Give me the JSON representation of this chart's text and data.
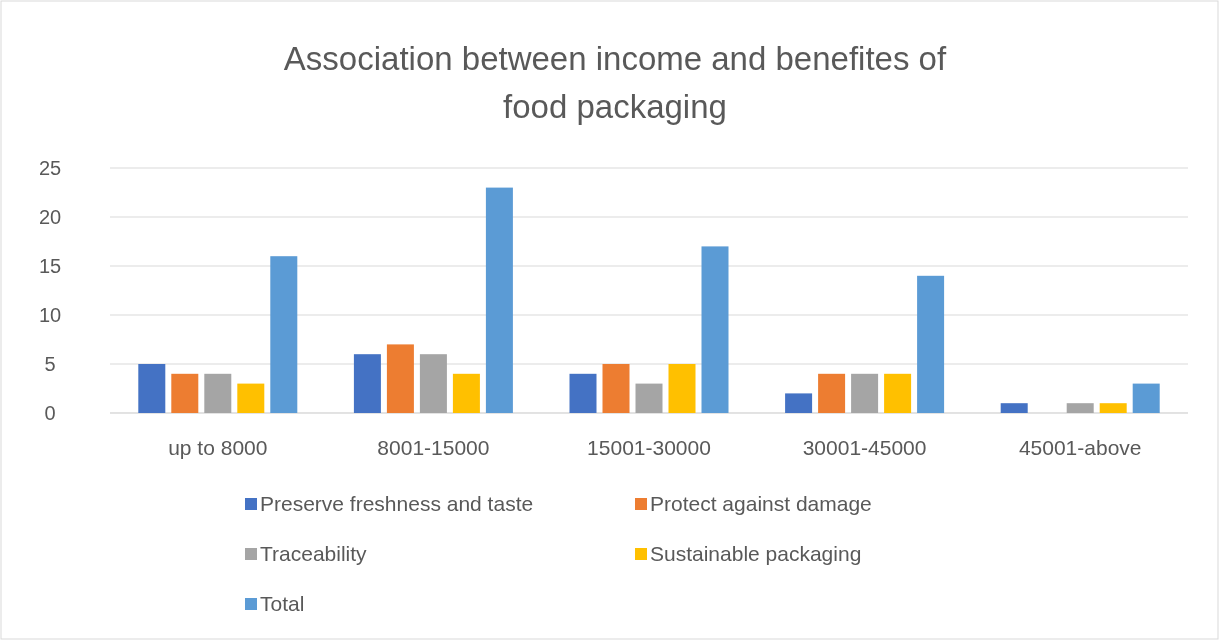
{
  "chart_data": {
    "type": "bar",
    "title": "Association between income and benefites of food packaging",
    "categories": [
      "up to 8000",
      "8001-15000",
      "15001-30000",
      "30001-45000",
      "45001-above"
    ],
    "series": [
      {
        "name": "Preserve freshness and taste",
        "color": "#4472c4",
        "values": [
          5,
          6,
          4,
          2,
          1
        ]
      },
      {
        "name": "Protect against damage",
        "color": "#ed7d31",
        "values": [
          4,
          7,
          5,
          4,
          0
        ]
      },
      {
        "name": "Traceability",
        "color": "#a5a5a5",
        "values": [
          4,
          6,
          3,
          4,
          1
        ]
      },
      {
        "name": "Sustainable packaging",
        "color": "#ffc000",
        "values": [
          3,
          4,
          5,
          4,
          1
        ]
      },
      {
        "name": "Total",
        "color": "#5b9bd5",
        "values": [
          16,
          23,
          17,
          14,
          3
        ]
      }
    ],
    "ylim": [
      0,
      25
    ],
    "yticks": [
      0,
      5,
      10,
      15,
      20,
      25
    ],
    "grid": "y",
    "legend": "bottom"
  }
}
